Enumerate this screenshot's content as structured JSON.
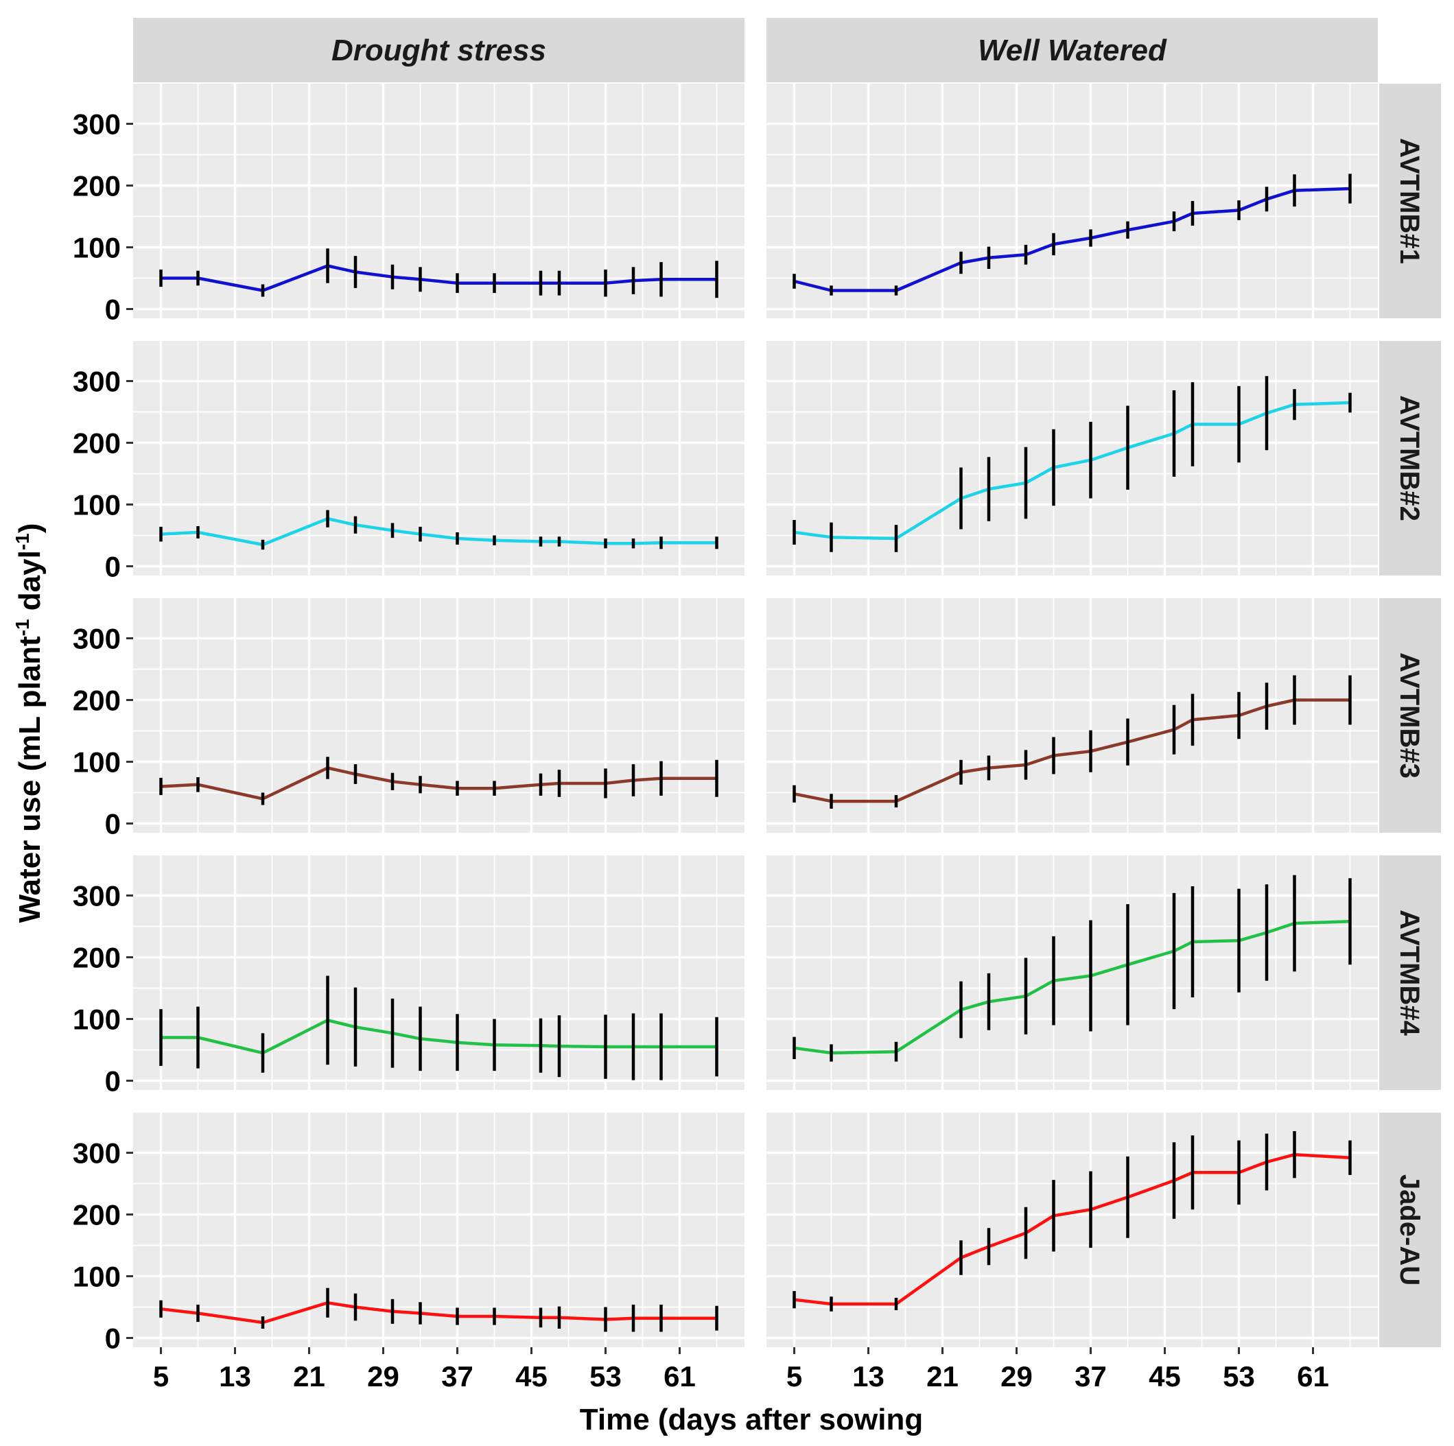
{
  "chart_data": {
    "type": "line",
    "title": "",
    "xlabel": "Time (days after sowing",
    "ylabel_parts": {
      "prefix": "Water use (mL plant",
      "sup1": "-1",
      "middle": " dayl",
      "sup2": "-1",
      "suffix": ")"
    },
    "column_facets": [
      "Drought stress",
      "Well Watered"
    ],
    "row_facets": [
      "AVTMB#1",
      "AVTMB#2",
      "AVTMB#3",
      "AVTMB#4",
      "Jade-AU"
    ],
    "row_colors": [
      "#1010d0",
      "#1ed2e8",
      "#8b3a2a",
      "#22c046",
      "#ff1010"
    ],
    "x": [
      5,
      9,
      16,
      23,
      26,
      30,
      33,
      37,
      41,
      46,
      48,
      53,
      56,
      59,
      65
    ],
    "x_ticks": [
      5,
      13,
      21,
      29,
      37,
      45,
      53,
      61
    ],
    "xlim": [
      2,
      68
    ],
    "y_ticks": [
      0,
      100,
      200,
      300
    ],
    "ylim": [
      -15,
      365
    ],
    "grid": true,
    "panels": [
      {
        "row": "AVTMB#1",
        "column": "Drought stress",
        "values": [
          50,
          50,
          30,
          70,
          60,
          52,
          48,
          42,
          42,
          42,
          42,
          42,
          46,
          48,
          48
        ],
        "errors": [
          14,
          12,
          10,
          28,
          26,
          20,
          20,
          16,
          16,
          20,
          20,
          22,
          22,
          28,
          30
        ]
      },
      {
        "row": "AVTMB#1",
        "column": "Well Watered",
        "values": [
          45,
          30,
          30,
          75,
          83,
          88,
          105,
          115,
          128,
          142,
          155,
          160,
          178,
          192,
          195
        ],
        "errors": [
          12,
          8,
          8,
          18,
          18,
          16,
          18,
          14,
          14,
          16,
          20,
          16,
          20,
          26,
          24
        ]
      },
      {
        "row": "AVTMB#2",
        "column": "Drought stress",
        "values": [
          52,
          55,
          35,
          77,
          67,
          58,
          52,
          45,
          42,
          40,
          40,
          37,
          37,
          38,
          38
        ],
        "errors": [
          12,
          10,
          8,
          14,
          14,
          12,
          12,
          10,
          8,
          8,
          8,
          8,
          8,
          10,
          10
        ]
      },
      {
        "row": "AVTMB#2",
        "column": "Well Watered",
        "values": [
          55,
          47,
          45,
          110,
          125,
          135,
          160,
          172,
          192,
          215,
          230,
          230,
          248,
          262,
          265
        ],
        "errors": [
          20,
          24,
          22,
          50,
          52,
          58,
          62,
          62,
          68,
          70,
          68,
          62,
          60,
          25,
          16
        ]
      },
      {
        "row": "AVTMB#3",
        "column": "Drought stress",
        "values": [
          60,
          63,
          40,
          90,
          80,
          68,
          63,
          57,
          57,
          63,
          65,
          65,
          70,
          73,
          73
        ],
        "errors": [
          14,
          12,
          10,
          18,
          16,
          14,
          14,
          12,
          12,
          18,
          22,
          24,
          26,
          28,
          30
        ]
      },
      {
        "row": "AVTMB#3",
        "column": "Well Watered",
        "values": [
          48,
          36,
          36,
          83,
          90,
          95,
          110,
          117,
          132,
          152,
          168,
          175,
          190,
          200,
          200
        ],
        "errors": [
          14,
          12,
          10,
          20,
          20,
          24,
          30,
          34,
          38,
          40,
          42,
          38,
          38,
          40,
          40
        ]
      },
      {
        "row": "AVTMB#4",
        "column": "Drought stress",
        "values": [
          70,
          70,
          45,
          98,
          87,
          77,
          68,
          62,
          58,
          57,
          56,
          55,
          55,
          55,
          55
        ],
        "errors": [
          46,
          50,
          32,
          72,
          64,
          56,
          52,
          46,
          42,
          44,
          50,
          52,
          54,
          54,
          48
        ]
      },
      {
        "row": "AVTMB#4",
        "column": "Well Watered",
        "values": [
          53,
          45,
          47,
          115,
          128,
          137,
          162,
          170,
          188,
          210,
          225,
          227,
          240,
          255,
          258
        ],
        "errors": [
          18,
          14,
          16,
          46,
          46,
          62,
          72,
          90,
          98,
          94,
          90,
          84,
          78,
          78,
          70
        ]
      },
      {
        "row": "Jade-AU",
        "column": "Drought stress",
        "values": [
          47,
          40,
          25,
          57,
          50,
          43,
          40,
          35,
          35,
          33,
          33,
          30,
          32,
          32,
          32
        ],
        "errors": [
          14,
          14,
          10,
          24,
          22,
          20,
          18,
          14,
          14,
          16,
          18,
          20,
          22,
          22,
          20
        ]
      },
      {
        "row": "Jade-AU",
        "column": "Well Watered",
        "values": [
          62,
          55,
          55,
          130,
          148,
          170,
          198,
          208,
          228,
          255,
          268,
          268,
          285,
          297,
          292
        ],
        "errors": [
          14,
          12,
          10,
          28,
          30,
          42,
          58,
          62,
          66,
          62,
          60,
          52,
          46,
          38,
          28
        ]
      }
    ]
  }
}
